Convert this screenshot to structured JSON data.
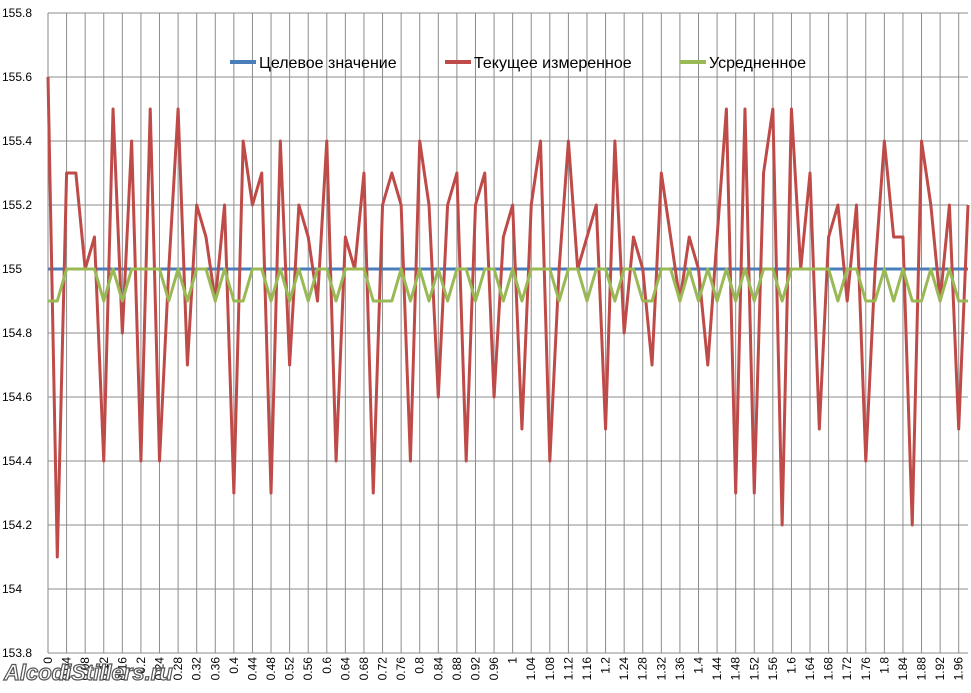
{
  "chart_data": {
    "type": "line",
    "x": [
      0,
      0.02,
      0.04,
      0.06,
      0.08,
      0.1,
      0.12,
      0.14,
      0.16,
      0.18,
      0.2,
      0.22,
      0.24,
      0.26,
      0.28,
      0.3,
      0.32,
      0.34,
      0.36,
      0.38,
      0.4,
      0.42,
      0.44,
      0.46,
      0.48,
      0.5,
      0.52,
      0.54,
      0.56,
      0.58,
      0.6,
      0.62,
      0.64,
      0.66,
      0.68,
      0.7,
      0.72,
      0.74,
      0.76,
      0.78,
      0.8,
      0.82,
      0.84,
      0.86,
      0.88,
      0.9,
      0.92,
      0.94,
      0.96,
      0.98,
      1,
      1.02,
      1.04,
      1.06,
      1.08,
      1.1,
      1.12,
      1.14,
      1.16,
      1.18,
      1.2,
      1.22,
      1.24,
      1.26,
      1.28,
      1.3,
      1.32,
      1.34,
      1.36,
      1.38,
      1.4,
      1.42,
      1.44,
      1.46,
      1.48,
      1.5,
      1.52,
      1.54,
      1.56,
      1.58,
      1.6,
      1.62,
      1.64,
      1.66,
      1.68,
      1.7,
      1.72,
      1.74,
      1.76,
      1.78,
      1.8,
      1.82,
      1.84,
      1.86,
      1.88,
      1.9,
      1.92,
      1.94,
      1.96,
      1.98
    ],
    "series": [
      {
        "name": "Целевое значение",
        "color": "#4a7ebb",
        "values": [
          155,
          155,
          155,
          155,
          155,
          155,
          155,
          155,
          155,
          155,
          155,
          155,
          155,
          155,
          155,
          155,
          155,
          155,
          155,
          155,
          155,
          155,
          155,
          155,
          155,
          155,
          155,
          155,
          155,
          155,
          155,
          155,
          155,
          155,
          155,
          155,
          155,
          155,
          155,
          155,
          155,
          155,
          155,
          155,
          155,
          155,
          155,
          155,
          155,
          155,
          155,
          155,
          155,
          155,
          155,
          155,
          155,
          155,
          155,
          155,
          155,
          155,
          155,
          155,
          155,
          155,
          155,
          155,
          155,
          155,
          155,
          155,
          155,
          155,
          155,
          155,
          155,
          155,
          155,
          155,
          155,
          155,
          155,
          155,
          155,
          155,
          155,
          155,
          155,
          155,
          155,
          155,
          155,
          155,
          155,
          155,
          155,
          155,
          155,
          155
        ]
      },
      {
        "name": "Текущее измеренное",
        "color": "#be4b48",
        "values": [
          155.6,
          154.1,
          155.3,
          155.3,
          155.0,
          155.1,
          154.4,
          155.5,
          154.8,
          155.4,
          154.4,
          155.5,
          154.4,
          155.0,
          155.5,
          154.7,
          155.2,
          155.1,
          154.9,
          155.2,
          154.3,
          155.4,
          155.2,
          155.3,
          154.3,
          155.4,
          154.7,
          155.2,
          155.1,
          154.9,
          155.4,
          154.4,
          155.1,
          155.0,
          155.3,
          154.3,
          155.2,
          155.3,
          155.2,
          154.4,
          155.4,
          155.2,
          154.6,
          155.2,
          155.3,
          154.4,
          155.2,
          155.3,
          154.6,
          155.1,
          155.2,
          154.5,
          155.2,
          155.4,
          154.4,
          155.0,
          155.4,
          155.0,
          155.1,
          155.2,
          154.5,
          155.4,
          154.8,
          155.1,
          155.0,
          154.7,
          155.3,
          155.1,
          154.9,
          155.1,
          155.0,
          154.7,
          155.1,
          155.5,
          154.3,
          155.5,
          154.3,
          155.3,
          155.5,
          154.2,
          155.5,
          155.0,
          155.3,
          154.5,
          155.1,
          155.2,
          154.9,
          155.2,
          154.4,
          155.0,
          155.4,
          155.1,
          155.1,
          154.2,
          155.4,
          155.2,
          154.9,
          155.2,
          154.5,
          155.2
        ]
      },
      {
        "name": "Усредненное",
        "color": "#98b954",
        "values": [
          154.9,
          154.9,
          155,
          155,
          155,
          155,
          154.9,
          155,
          154.9,
          155,
          155,
          155,
          155,
          154.9,
          155,
          154.9,
          155,
          155,
          154.9,
          155,
          154.9,
          154.9,
          155,
          155,
          154.9,
          155,
          154.9,
          155,
          154.9,
          155,
          155,
          154.9,
          155,
          155,
          155,
          154.9,
          154.9,
          154.9,
          155,
          154.9,
          155,
          154.9,
          155,
          154.9,
          155,
          155,
          154.9,
          155,
          155,
          154.9,
          155,
          154.9,
          155,
          155,
          155,
          154.9,
          155,
          155,
          154.9,
          155,
          155,
          154.9,
          155,
          155,
          154.9,
          154.9,
          155,
          155,
          154.9,
          155,
          154.9,
          155,
          154.9,
          155,
          154.9,
          155,
          154.9,
          155,
          155,
          154.9,
          155,
          155,
          155,
          155,
          155,
          154.9,
          155,
          155,
          154.9,
          154.9,
          155,
          154.9,
          155,
          154.9,
          154.9,
          155,
          154.9,
          155,
          154.9,
          154.9
        ]
      }
    ],
    "xlim": [
      0,
      1.98
    ],
    "xticks": [
      0,
      0.04,
      0.08,
      0.12,
      0.16,
      0.2,
      0.24,
      0.28,
      0.32,
      0.36,
      0.4,
      0.44,
      0.48,
      0.52,
      0.56,
      0.6,
      0.64,
      0.68,
      0.72,
      0.76,
      0.8,
      0.84,
      0.88,
      0.92,
      0.96,
      1,
      1.04,
      1.08,
      1.12,
      1.16,
      1.2,
      1.24,
      1.28,
      1.32,
      1.36,
      1.4,
      1.44,
      1.48,
      1.52,
      1.56,
      1.6,
      1.64,
      1.68,
      1.72,
      1.76,
      1.8,
      1.84,
      1.88,
      1.92,
      1.96
    ],
    "ylim": [
      153.8,
      155.8
    ],
    "yticks": [
      153.8,
      154,
      154.2,
      154.4,
      154.6,
      154.8,
      155,
      155.2,
      155.4,
      155.6,
      155.8
    ],
    "grid": true,
    "legend": "top",
    "watermark": "AlcodiStillers.ru"
  }
}
